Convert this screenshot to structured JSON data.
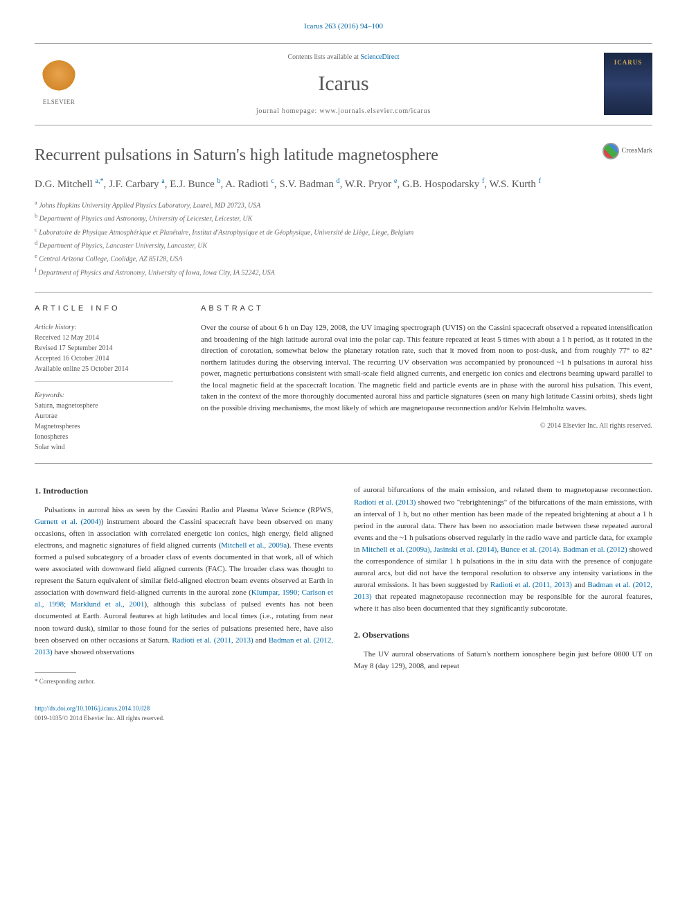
{
  "citation": "Icarus 263 (2016) 94–100",
  "header": {
    "contents_prefix": "Contents lists available at ",
    "contents_link": "ScienceDirect",
    "journal": "Icarus",
    "homepage_prefix": "journal homepage: ",
    "homepage_url": "www.journals.elsevier.com/icarus",
    "publisher": "ELSEVIER",
    "cover_label": "ICARUS"
  },
  "crossmark": "CrossMark",
  "title": "Recurrent pulsations in Saturn's high latitude magnetosphere",
  "authors_html": "D.G. Mitchell <sup>a,*</sup>, J.F. Carbary <sup>a</sup>, E.J. Bunce <sup>b</sup>, A. Radioti <sup>c</sup>, S.V. Badman <sup>d</sup>, W.R. Pryor <sup>e</sup>, G.B. Hospodarsky <sup>f</sup>, W.S. Kurth <sup>f</sup>",
  "affiliations": [
    {
      "sup": "a",
      "text": "Johns Hopkins University Applied Physics Laboratory, Laurel, MD 20723, USA"
    },
    {
      "sup": "b",
      "text": "Department of Physics and Astronomy, University of Leicester, Leicester, UK"
    },
    {
      "sup": "c",
      "text": "Laboratoire de Physique Atmosphérique et Planétaire, Institut d'Astrophysique et de Géophysique, Université de Liège, Liege, Belgium"
    },
    {
      "sup": "d",
      "text": "Department of Physics, Lancaster University, Lancaster, UK"
    },
    {
      "sup": "e",
      "text": "Central Arizona College, Coolidge, AZ 85128, USA"
    },
    {
      "sup": "f",
      "text": "Department of Physics and Astronomy, University of Iowa, Iowa City, IA 52242, USA"
    }
  ],
  "info_heading": "ARTICLE INFO",
  "abstract_heading": "ABSTRACT",
  "history": {
    "label": "Article history:",
    "received": "Received 12 May 2014",
    "revised": "Revised 17 September 2014",
    "accepted": "Accepted 16 October 2014",
    "online": "Available online 25 October 2014"
  },
  "keywords": {
    "label": "Keywords:",
    "items": [
      "Saturn, magnetosphere",
      "Aurorae",
      "Magnetospheres",
      "Ionospheres",
      "Solar wind"
    ]
  },
  "abstract": "Over the course of about 6 h on Day 129, 2008, the UV imaging spectrograph (UVIS) on the Cassini spacecraft observed a repeated intensification and broadening of the high latitude auroral oval into the polar cap. This feature repeated at least 5 times with about a 1 h period, as it rotated in the direction of corotation, somewhat below the planetary rotation rate, such that it moved from noon to post-dusk, and from roughly 77° to 82° northern latitudes during the observing interval. The recurring UV observation was accompanied by pronounced ~1 h pulsations in auroral hiss power, magnetic perturbations consistent with small-scale field aligned currents, and energetic ion conics and electrons beaming upward parallel to the local magnetic field at the spacecraft location. The magnetic field and particle events are in phase with the auroral hiss pulsation. This event, taken in the context of the more thoroughly documented auroral hiss and particle signatures (seen on many high latitude Cassini orbits), sheds light on the possible driving mechanisms, the most likely of which are magnetopause reconnection and/or Kelvin Helmholtz waves.",
  "copyright": "© 2014 Elsevier Inc. All rights reserved.",
  "sections": {
    "intro_heading": "1. Introduction",
    "obs_heading": "2. Observations"
  },
  "body": {
    "col1_p1_a": "Pulsations in auroral hiss as seen by the Cassini Radio and Plasma Wave Science (RPWS, ",
    "col1_link1": "Gurnett et al. (2004)",
    "col1_p1_b": ") instrument aboard the Cassini spacecraft have been observed on many occasions, often in association with correlated energetic ion conics, high energy, field aligned electrons, and magnetic signatures of field aligned currents (",
    "col1_link2": "Mitchell et al., 2009a",
    "col1_p1_c": "). These events formed a pulsed subcategory of a broader class of events documented in that work, all of which were associated with downward field aligned currents (FAC). The broader class was thought to represent the Saturn equivalent of similar field-aligned electron beam events observed at Earth in association with downward field-aligned currents in the auroral zone (",
    "col1_link3": "Klumpar, 1990; Carlson et al., 1998; Marklund et al., 2001",
    "col1_p1_d": "), although this subclass of pulsed events has not been documented at Earth. Auroral features at high latitudes and local times (i.e., rotating from near noon toward dusk), similar to those found for the series of pulsations presented here, have also been observed on other occasions at Saturn. ",
    "col1_link4": "Radioti et al. (2011, 2013)",
    "col1_p1_e": " and ",
    "col1_link5": "Badman et al. (2012, 2013)",
    "col1_p1_f": " have showed observations",
    "col2_p1_a": "of auroral bifurcations of the main emission, and related them to magnetopause reconnection. ",
    "col2_link1": "Radioti et al. (2013)",
    "col2_p1_b": " showed two \"rebrightenings\" of the bifurcations of the main emissions, with an interval of 1 h, but no other mention has been made of the repeated brightening at about a 1 h period in the auroral data. There has been no association made between these repeated auroral events and the ~1 h pulsations observed regularly in the radio wave and particle data, for example in ",
    "col2_link2": "Mitchell et al. (2009a), Jasinski et al. (2014), Bunce et al. (2014)",
    "col2_p1_c": ". ",
    "col2_link3": "Badman et al. (2012)",
    "col2_p1_d": " showed the correspondence of similar 1 h pulsations in the in situ data with the presence of conjugate auroral arcs, but did not have the temporal resolution to observe any intensity variations in the auroral emissions. It has been suggested by ",
    "col2_link4": "Radioti et al. (2011, 2013)",
    "col2_p1_e": " and ",
    "col2_link5": "Badman et al. (2012, 2013)",
    "col2_p1_f": " that repeated magnetopause reconnection may be responsible for the auroral features, where it has also been documented that they significantly subcorotate.",
    "col2_p2": "The UV auroral observations of Saturn's northern ionosphere begin just before 0800 UT on May 8 (day 129), 2008, and repeat"
  },
  "footnote": {
    "marker": "*",
    "text": "Corresponding author."
  },
  "bottom": {
    "doi": "http://dx.doi.org/10.1016/j.icarus.2014.10.028",
    "issn_line": "0019-1035/© 2014 Elsevier Inc. All rights reserved."
  },
  "colors": {
    "link": "#0066a6",
    "text": "#333333",
    "muted": "#666666",
    "rule": "#999999"
  }
}
